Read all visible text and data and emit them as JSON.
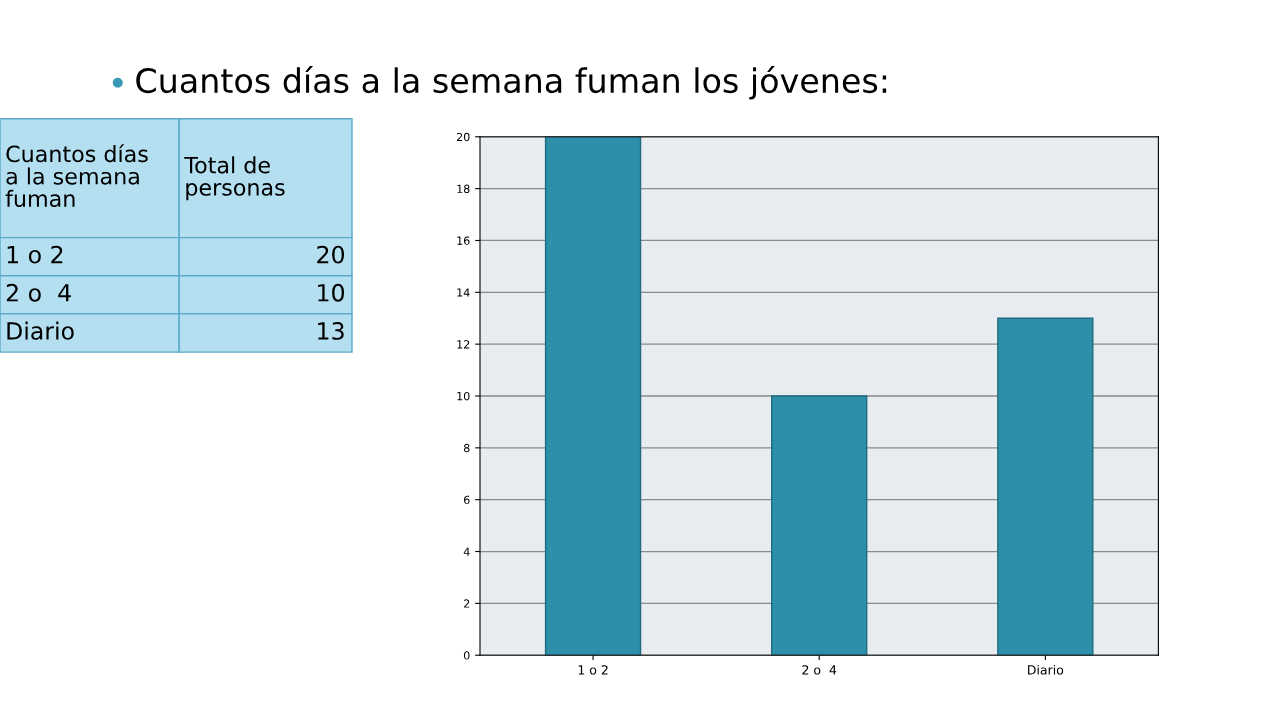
{
  "chart_data": [
    {
      "type": "other",
      "title": "Cuantos días a la semana fuman los jóvenes:",
      "categories": [
        "1 o 2",
        "2 o  4",
        "Diario"
      ],
      "values": [
        20,
        10,
        13
      ],
      "data_labels": true,
      "annotations": [
        "Cuantos días a la semana fuman",
        "Total de personas"
      ]
    },
    {
      "type": "bar",
      "categories": [
        "1 o 2",
        "2 o  4",
        "Diario"
      ],
      "values": [
        20,
        10,
        13
      ],
      "color": "#2e8fa8",
      "ylim": [
        0,
        20
      ],
      "yticks": [
        0,
        2,
        4,
        6,
        8,
        10,
        12,
        14,
        16,
        18,
        20
      ],
      "grid": "y"
    }
  ]
}
